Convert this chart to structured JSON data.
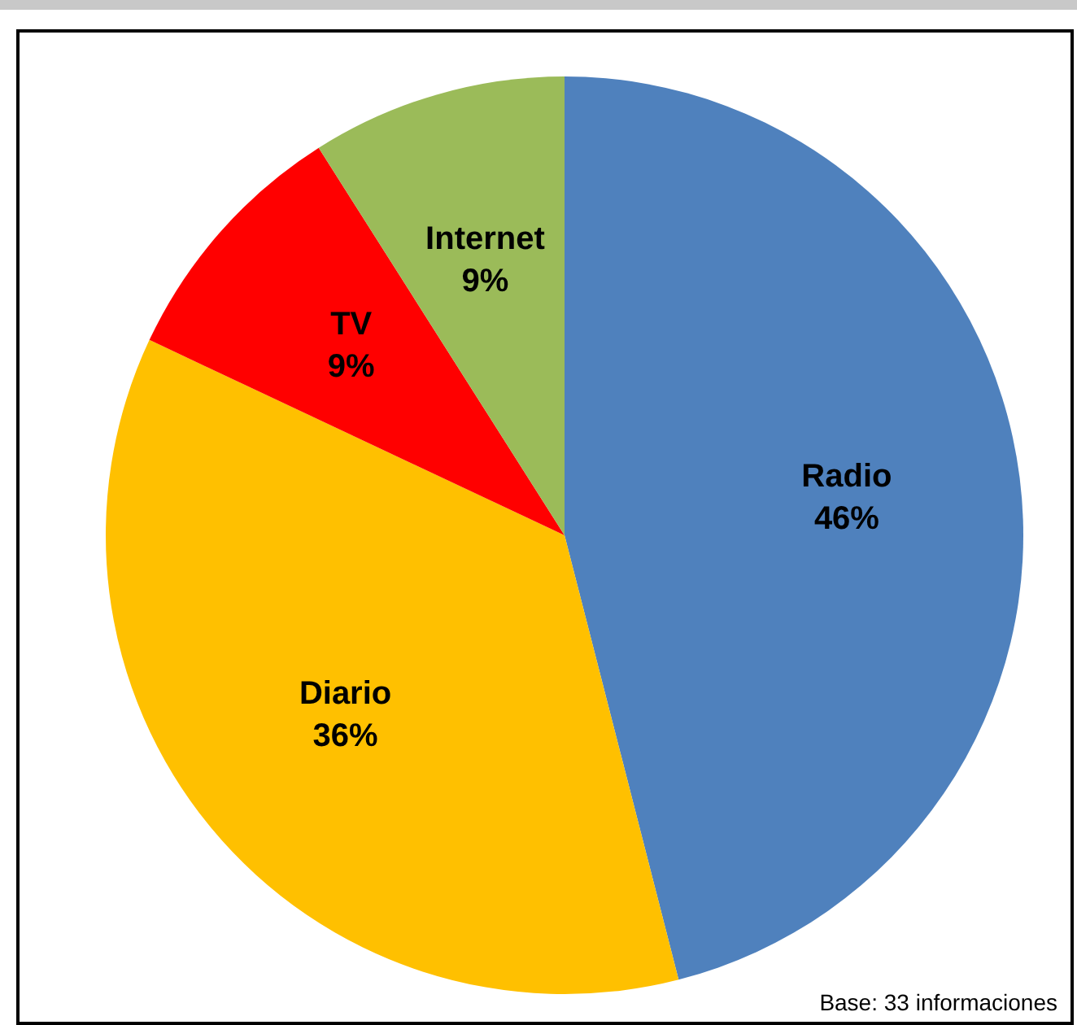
{
  "chart_data": {
    "type": "pie",
    "categories": [
      "Radio",
      "Diario",
      "TV",
      "Internet"
    ],
    "values": [
      46,
      36,
      9,
      9
    ],
    "value_labels": [
      "46%",
      "36%",
      "9%",
      "9%"
    ],
    "colors": [
      "#4f81bd",
      "#ffc000",
      "#ff0000",
      "#9bbb59"
    ],
    "annotations": [
      "Base: 33 informaciones"
    ]
  }
}
